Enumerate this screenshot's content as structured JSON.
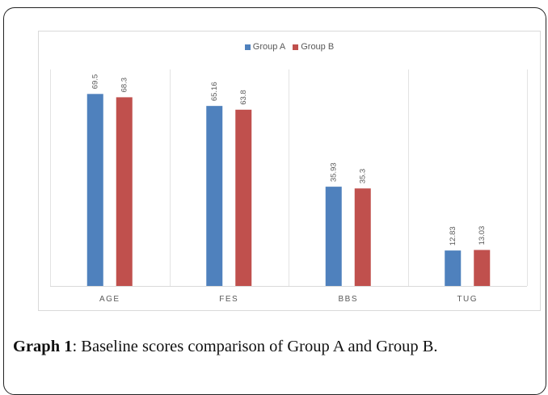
{
  "chart_data": {
    "type": "bar",
    "title": "",
    "xlabel": "",
    "ylabel": "",
    "categories": [
      "AGE",
      "FES",
      "BBS",
      "TUG"
    ],
    "series": [
      {
        "name": "Group A",
        "color": "#4f81bd",
        "values": [
          69.5,
          65.16,
          35.93,
          12.83
        ]
      },
      {
        "name": "Group B",
        "color": "#c0504d",
        "values": [
          68.3,
          63.8,
          35.3,
          13.03
        ]
      }
    ],
    "data_labels": [
      [
        "69.5",
        "65.16",
        "35.93",
        "12.83"
      ],
      [
        "68.3",
        "63.8",
        "35.3",
        "13.03"
      ]
    ],
    "ylim": [
      0,
      85
    ],
    "grid": false,
    "legend_position": "top"
  },
  "caption": {
    "label": "Graph 1",
    "text": ": Baseline scores comparison of Group A and Group B."
  }
}
